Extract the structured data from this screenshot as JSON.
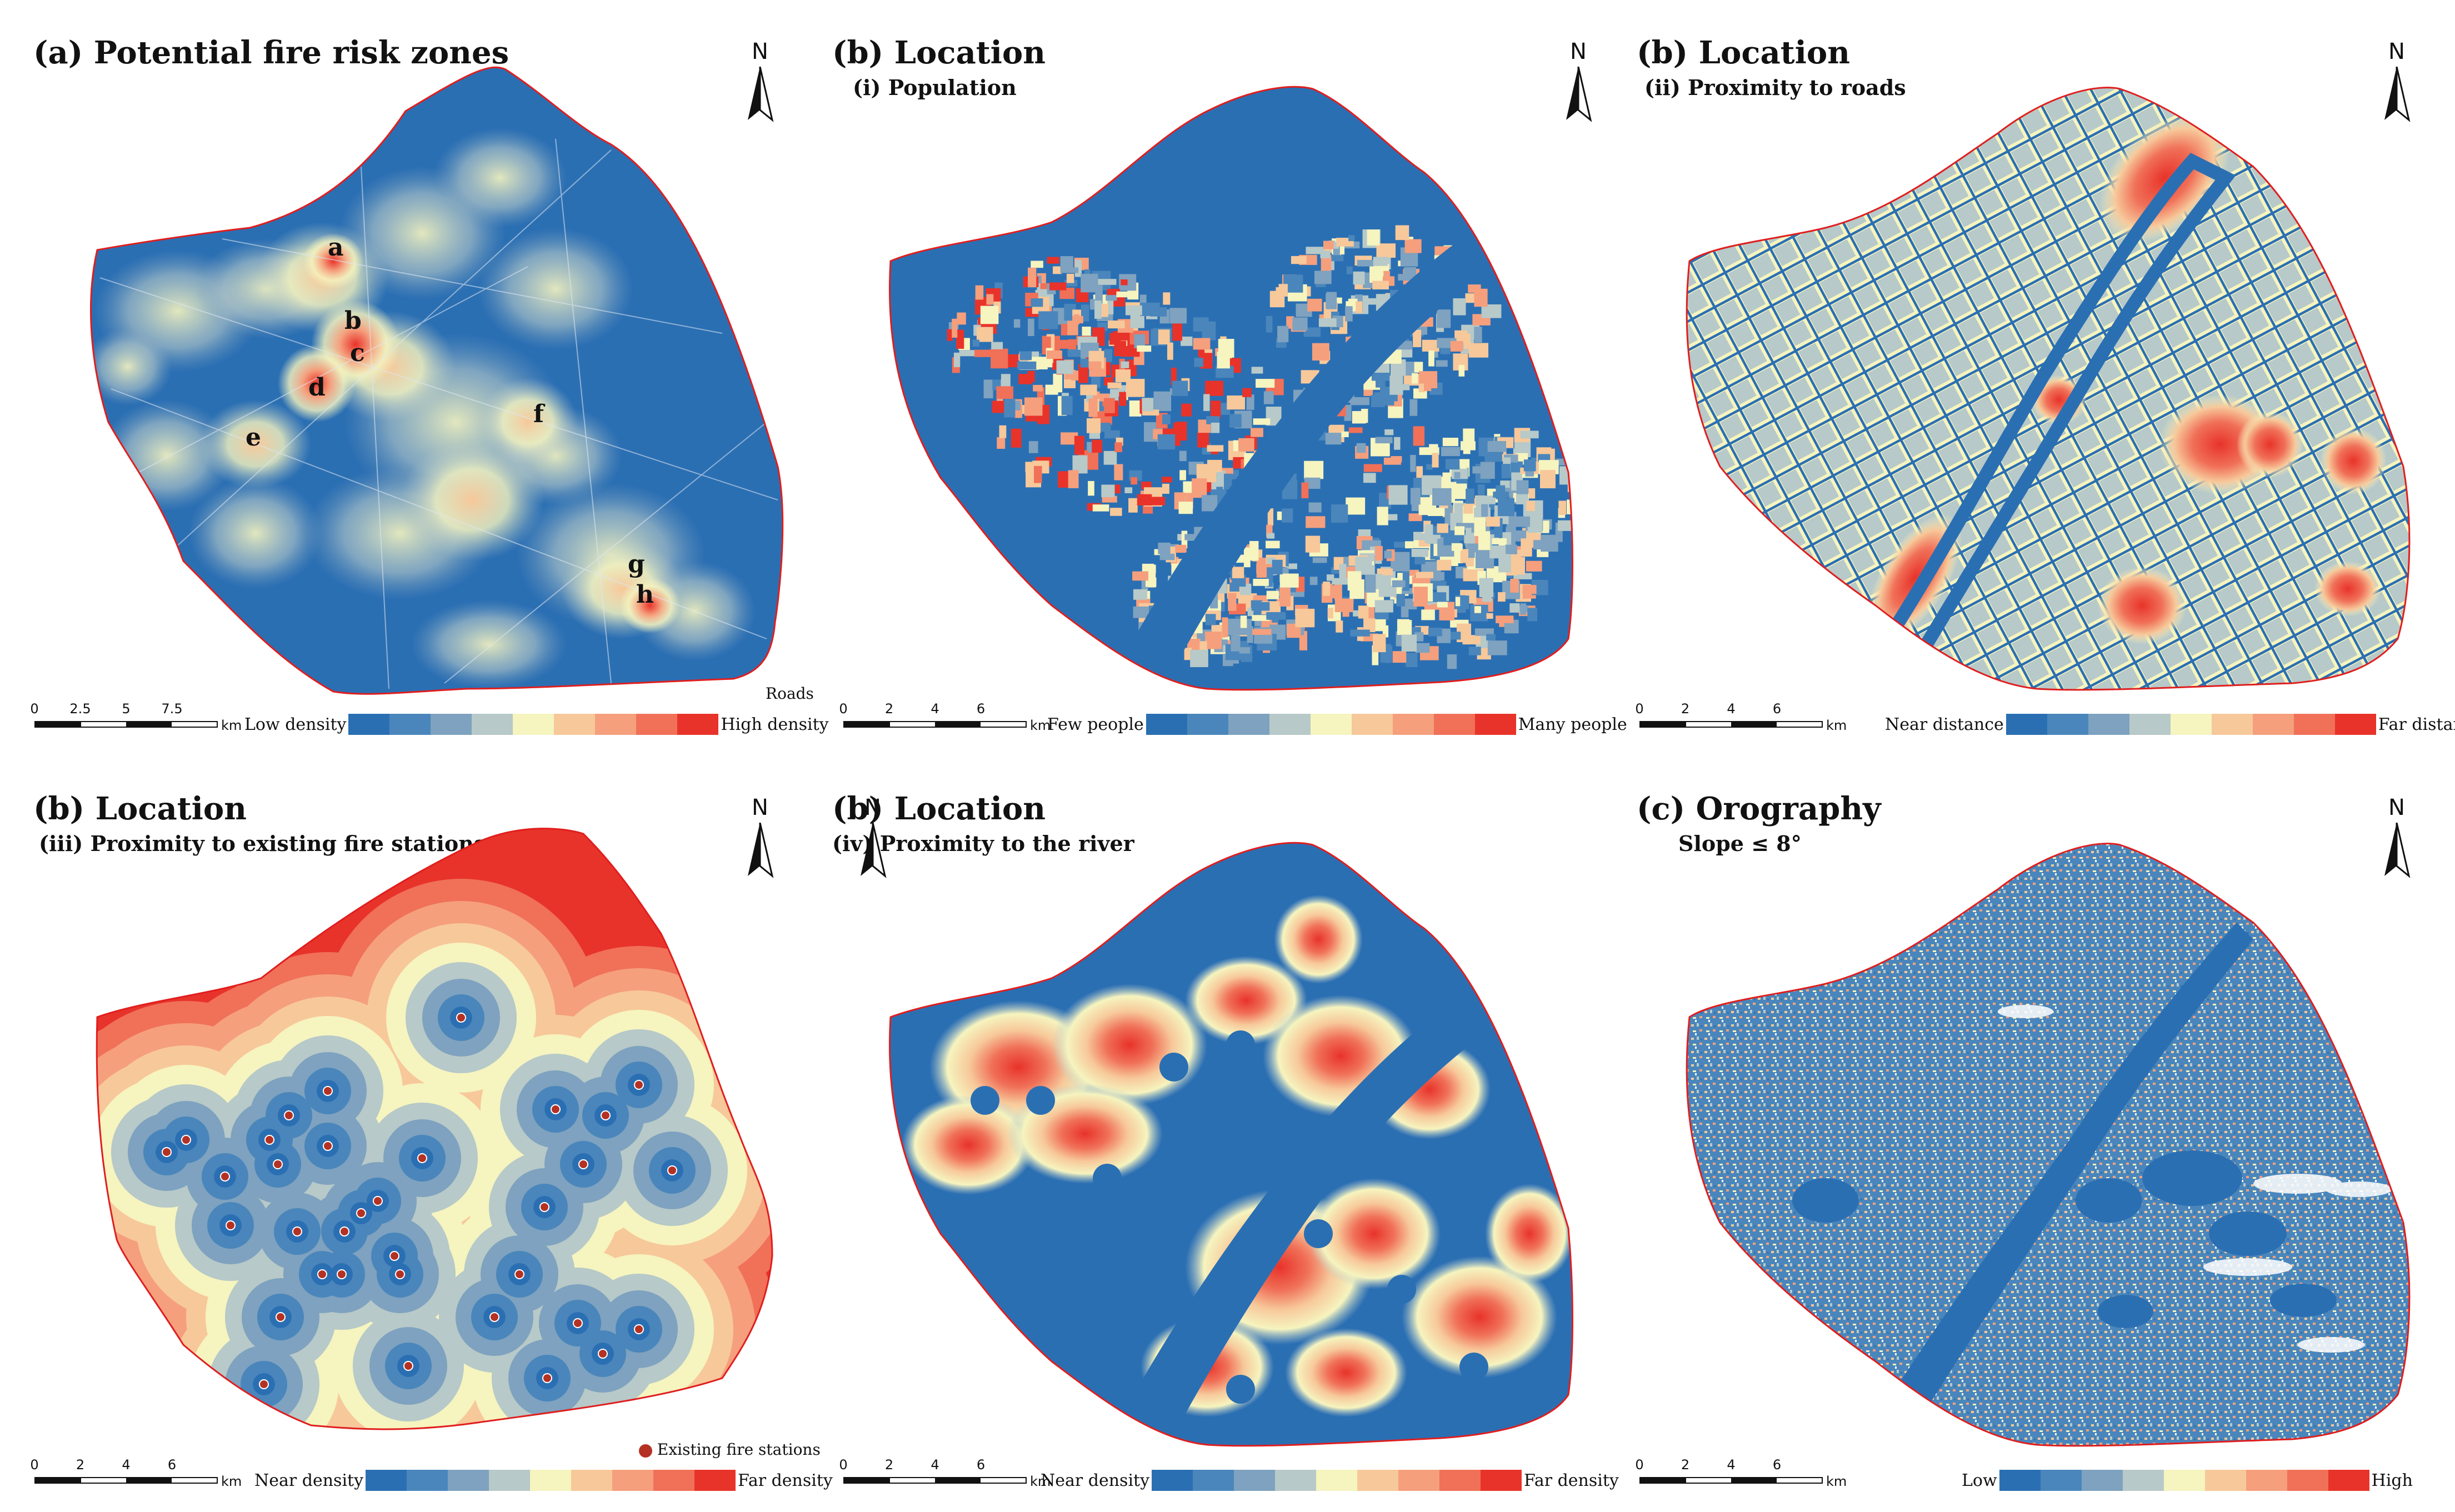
{
  "colors": {
    "ramp": [
      "#2b6fb3",
      "#4a86bb",
      "#7ea2bf",
      "#b7c9c8",
      "#f6f4bf",
      "#f7c89a",
      "#f59f7d",
      "#f07058",
      "#e8332a"
    ],
    "water": "#2b6fb3",
    "boundary": "#e01e1e",
    "station": "#b43223"
  },
  "panels": [
    {
      "id": "a",
      "title": "(a) Potential fire risk zones",
      "subtitle": "",
      "north": "N",
      "scale": {
        "ticks": [
          "0",
          "2.5",
          "5",
          "7.5"
        ],
        "unit": "km"
      },
      "legend": {
        "low": "Low density",
        "high": "High density"
      },
      "extra": "Roads",
      "labels": [
        "a",
        "b",
        "c",
        "d",
        "e",
        "f",
        "g",
        "h"
      ]
    },
    {
      "id": "b1",
      "title": "(b) Location",
      "subtitle": "(i) Population",
      "north": "N",
      "scale": {
        "ticks": [
          "0",
          "2",
          "4",
          "6"
        ],
        "unit": "km"
      },
      "legend": {
        "low": "Few people",
        "high": "Many people"
      }
    },
    {
      "id": "b2",
      "title": "(b) Location",
      "subtitle": "(ii) Proximity to roads",
      "north": "N",
      "scale": {
        "ticks": [
          "0",
          "2",
          "4",
          "6"
        ],
        "unit": "km"
      },
      "legend": {
        "low": "Near distance",
        "high": "Far distance"
      }
    },
    {
      "id": "b3",
      "title": "(b) Location",
      "subtitle": "(iii) Proximity to existing fire stations",
      "north": "N",
      "scale": {
        "ticks": [
          "0",
          "2",
          "4",
          "6"
        ],
        "unit": "km"
      },
      "legend": {
        "low": "Near density",
        "high": "Far density"
      },
      "extra": "Existing fire stations"
    },
    {
      "id": "b4",
      "title": "(b) Location",
      "subtitle": "(iv) Proximity to the river",
      "north": "N",
      "scale": {
        "ticks": [
          "0",
          "2",
          "4",
          "6"
        ],
        "unit": "km"
      },
      "legend": {
        "low": "Near density",
        "high": "Far density"
      }
    },
    {
      "id": "c",
      "title": "(c) Orography",
      "subtitle": "Slope ≤ 8°",
      "north": "N",
      "scale": {
        "ticks": [
          "0",
          "2",
          "4",
          "6"
        ],
        "unit": "km"
      },
      "legend": {
        "low": "Low",
        "high": "High"
      }
    }
  ]
}
